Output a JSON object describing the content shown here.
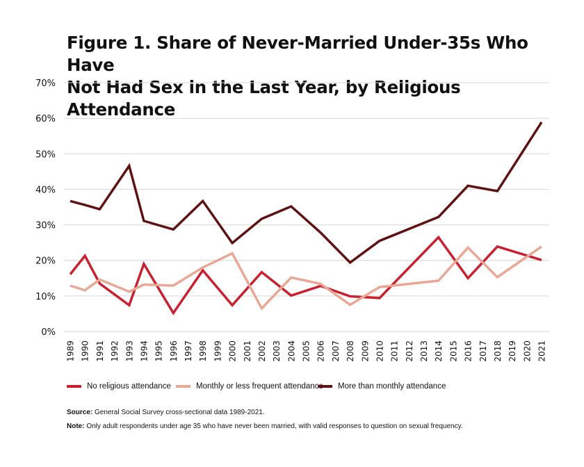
{
  "chart_data": {
    "type": "line",
    "title": "Figure 1. Share of Never-Married Under-35s Who Have Not Had Sex in the Last Year, by Religious Attendance",
    "title_lines": [
      "Figure 1. Share of Never-Married Under-35s Who Have",
      "Not Had Sex in the Last Year, by Religious Attendance"
    ],
    "xlabel": "",
    "ylabel": "",
    "ylim": [
      0,
      70
    ],
    "yticks": [
      0,
      10,
      20,
      30,
      40,
      50,
      60,
      70
    ],
    "ytick_labels": [
      "0%",
      "10%",
      "20%",
      "30%",
      "40%",
      "50%",
      "60%",
      "70%"
    ],
    "x_categories": [
      "1989",
      "1990",
      "1991",
      "1992",
      "1993",
      "1994",
      "1995",
      "1996",
      "1997",
      "1998",
      "1999",
      "2000",
      "2001",
      "2002",
      "2003",
      "2004",
      "2005",
      "2006",
      "2007",
      "2008",
      "2009",
      "2010",
      "2011",
      "2012",
      "2013",
      "2014",
      "2015",
      "2016",
      "2017",
      "2018",
      "2019",
      "2020",
      "2021"
    ],
    "grid": true,
    "legend_position": "bottom",
    "series": [
      {
        "name": "No religious attendance",
        "color": "#C8202F",
        "points": [
          [
            1989,
            16.1
          ],
          [
            1990,
            21.3
          ],
          [
            1991,
            13.5
          ],
          [
            1993,
            7.4
          ],
          [
            1994,
            19.0
          ],
          [
            1996,
            5.2
          ],
          [
            1998,
            17.2
          ],
          [
            2000,
            7.4
          ],
          [
            2002,
            16.7
          ],
          [
            2004,
            10.1
          ],
          [
            2006,
            12.8
          ],
          [
            2008,
            9.9
          ],
          [
            2010,
            9.4
          ],
          [
            2014,
            26.5
          ],
          [
            2016,
            15.0
          ],
          [
            2018,
            23.9
          ],
          [
            2021,
            20.1
          ]
        ]
      },
      {
        "name": "Monthly or less frequent attendance",
        "color": "#E9A796",
        "points": [
          [
            1989,
            12.9
          ],
          [
            1990,
            11.6
          ],
          [
            1991,
            14.6
          ],
          [
            1993,
            11.2
          ],
          [
            1994,
            13.2
          ],
          [
            1996,
            12.9
          ],
          [
            1998,
            18.0
          ],
          [
            2000,
            22.0
          ],
          [
            2002,
            6.5
          ],
          [
            2004,
            15.2
          ],
          [
            2006,
            13.4
          ],
          [
            2008,
            7.5
          ],
          [
            2010,
            12.5
          ],
          [
            2014,
            14.3
          ],
          [
            2016,
            23.6
          ],
          [
            2018,
            15.3
          ],
          [
            2021,
            23.9
          ]
        ]
      },
      {
        "name": "More than monthly attendance",
        "color": "#5E1212",
        "points": [
          [
            1989,
            36.7
          ],
          [
            1990,
            35.6
          ],
          [
            1991,
            34.4
          ],
          [
            1993,
            46.6
          ],
          [
            1994,
            31.1
          ],
          [
            1996,
            28.7
          ],
          [
            1998,
            36.7
          ],
          [
            2000,
            24.9
          ],
          [
            2002,
            31.7
          ],
          [
            2004,
            35.2
          ],
          [
            2006,
            27.8
          ],
          [
            2008,
            19.4
          ],
          [
            2010,
            25.5
          ],
          [
            2014,
            32.2
          ],
          [
            2016,
            41.0
          ],
          [
            2018,
            39.5
          ],
          [
            2021,
            58.9
          ]
        ]
      }
    ]
  },
  "footer": {
    "source_label": "Source:",
    "source_text": " General Social Survey cross-sectional data 1989-2021.",
    "note_label": "Note:",
    "note_text": " Only adult respondents under age 35 who have never been married, with valid responses to question on sexual frequency."
  }
}
